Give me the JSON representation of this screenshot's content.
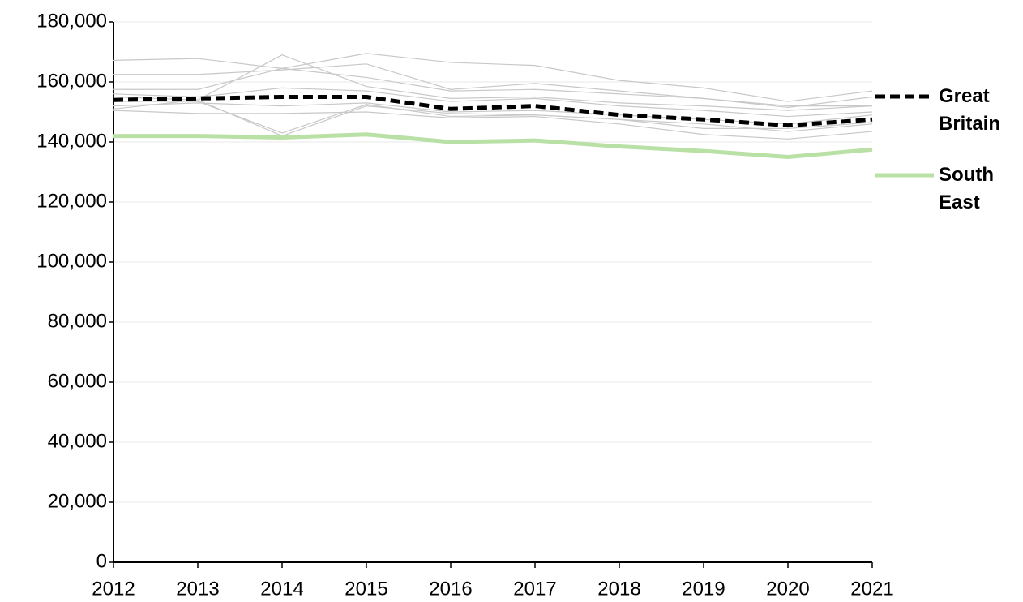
{
  "chart_data": {
    "type": "line",
    "categories": [
      "2012",
      "2013",
      "2014",
      "2015",
      "2016",
      "2017",
      "2018",
      "2019",
      "2020",
      "2021"
    ],
    "ylim": [
      0,
      180000
    ],
    "yticks": [
      0,
      {
        "value": 20000,
        "label": "20,000"
      },
      {
        "value": 40000,
        "label": "40,000"
      },
      {
        "value": 60000,
        "label": "60,000"
      },
      {
        "value": 80000,
        "label": "80,000"
      },
      {
        "value": 100000,
        "label": "100,000"
      },
      {
        "value": 120000,
        "label": "120,000"
      },
      {
        "value": 140000,
        "label": "140,000"
      },
      {
        "value": 160000,
        "label": "160,000"
      },
      {
        "value": 180000,
        "label": "180,000"
      }
    ],
    "grid": true,
    "series": [
      {
        "color": "#c8c8c8",
        "values": [
          167200,
          167800,
          164500,
          169500,
          166500,
          165500,
          160500,
          158000,
          153500,
          157000
        ]
      },
      {
        "color": "#c8c8c8",
        "values": [
          162500,
          162500,
          164000,
          166000,
          157500,
          159500,
          157000,
          154500,
          151500,
          155000
        ]
      },
      {
        "color": "#c8c8c8",
        "values": [
          157500,
          157500,
          164500,
          161500,
          157000,
          157500,
          156000,
          154500,
          152000,
          152000
        ]
      },
      {
        "color": "#c8c8c8",
        "values": [
          155000,
          154000,
          169000,
          158500,
          154500,
          155000,
          153000,
          152000,
          150500,
          152000
        ]
      },
      {
        "color": "#c8c8c8",
        "values": [
          156000,
          155000,
          158000,
          157000,
          153500,
          154500,
          152000,
          150500,
          148500,
          150000
        ]
      },
      {
        "color": "#c8c8c8",
        "values": [
          152000,
          153000,
          152000,
          153000,
          150000,
          150500,
          149000,
          147500,
          146000,
          149000
        ]
      },
      {
        "color": "#c8c8c8",
        "values": [
          151000,
          154000,
          142000,
          152000,
          149500,
          149000,
          147500,
          144500,
          144500,
          146500
        ]
      },
      {
        "color": "#c8c8c8",
        "values": [
          150500,
          149500,
          149500,
          150000,
          148000,
          148500,
          146000,
          142500,
          141000,
          143500
        ]
      },
      {
        "color": "#c8c8c8",
        "values": [
          153500,
          153500,
          143000,
          152500,
          148500,
          149000,
          147500,
          146000,
          143500,
          146000
        ]
      },
      {
        "name": "Great Britain",
        "color": "#000000",
        "dashed": true,
        "values": [
          154000,
          154500,
          155000,
          155000,
          151000,
          152000,
          149000,
          147500,
          145500,
          147500
        ]
      },
      {
        "name": "South East",
        "color": "#b9e0a5",
        "values": [
          142000,
          142000,
          141500,
          142500,
          140000,
          140500,
          138500,
          137000,
          135000,
          137500
        ]
      }
    ]
  }
}
